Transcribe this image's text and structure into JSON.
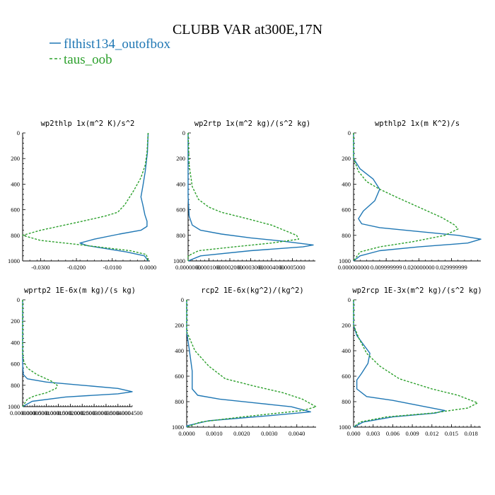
{
  "title": "CLUBB VAR at300E,17N",
  "legend": [
    {
      "label": "flthist134_outofbox",
      "color": "#1f77b4",
      "dash": false
    },
    {
      "label": "taus_oob",
      "color": "#2ca02c",
      "dash": true
    }
  ],
  "chart_data": [
    {
      "type": "line",
      "title": "wp2thlp   1x(m^2 K)/s^2",
      "xlim": [
        -0.035,
        0.0005
      ],
      "ylim": [
        1000,
        0
      ],
      "xticks": [
        -0.03,
        -0.02,
        -0.01,
        0.0
      ],
      "xtick_labels": [
        "-0.0300",
        "-0.0200",
        "-0.0100",
        "0.0000"
      ],
      "yticks": [
        0,
        200,
        400,
        600,
        800,
        1000
      ],
      "series": [
        {
          "name": "flthist134_outofbox",
          "points": [
            [
              0,
              0
            ],
            [
              -0.0002,
              150
            ],
            [
              -0.0008,
              300
            ],
            [
              -0.0015,
              420
            ],
            [
              -0.002,
              500
            ],
            [
              -0.0015,
              560
            ],
            [
              -0.0009,
              640
            ],
            [
              -0.0003,
              690
            ],
            [
              -0.0003,
              730
            ],
            [
              -0.002,
              760
            ],
            [
              -0.008,
              790
            ],
            [
              -0.015,
              830
            ],
            [
              -0.019,
              860
            ],
            [
              -0.017,
              880
            ],
            [
              -0.006,
              930
            ],
            [
              -0.001,
              960
            ],
            [
              0,
              1000
            ]
          ]
        },
        {
          "name": "taus_oob",
          "points": [
            [
              0,
              0
            ],
            [
              -0.0003,
              150
            ],
            [
              -0.0008,
              250
            ],
            [
              -0.002,
              350
            ],
            [
              -0.004,
              450
            ],
            [
              -0.0065,
              560
            ],
            [
              -0.0085,
              620
            ],
            [
              -0.012,
              650
            ],
            [
              -0.02,
              700
            ],
            [
              -0.03,
              760
            ],
            [
              -0.035,
              800
            ],
            [
              -0.03,
              840
            ],
            [
              -0.02,
              870
            ],
            [
              -0.014,
              890
            ],
            [
              -0.005,
              920
            ],
            [
              -0.0005,
              950
            ],
            [
              0,
              1000
            ]
          ]
        }
      ]
    },
    {
      "type": "line",
      "title": "wp2rtp   1x(m^2 kg)/(s^2 kg)",
      "xlim": [
        0,
        0.00061
      ],
      "ylim": [
        1000,
        0
      ],
      "xticks": [
        0,
        0.0001,
        0.0002,
        0.0003,
        0.0004,
        0.0005
      ],
      "xtick_labels": [
        "0.0000000",
        "0.0001000",
        "0.0002000",
        "0.0003000",
        "0.0004000",
        "0.0005000"
      ],
      "yticks": [
        0,
        200,
        400,
        600,
        800,
        1000
      ],
      "series": [
        {
          "name": "flthist134_outofbox",
          "points": [
            [
              0,
              0
            ],
            [
              0,
              500
            ],
            [
              5e-06,
              650
            ],
            [
              2e-05,
              720
            ],
            [
              6e-05,
              760
            ],
            [
              0.00016,
              790
            ],
            [
              0.0003,
              820
            ],
            [
              0.00045,
              845
            ],
            [
              0.0006,
              875
            ],
            [
              0.00055,
              890
            ],
            [
              0.0003,
              920
            ],
            [
              6e-05,
              960
            ],
            [
              0,
              1000
            ]
          ]
        },
        {
          "name": "taus_oob",
          "points": [
            [
              0,
              0
            ],
            [
              5e-06,
              250
            ],
            [
              2e-05,
              420
            ],
            [
              5e-05,
              520
            ],
            [
              0.0001,
              580
            ],
            [
              0.00016,
              620
            ],
            [
              0.00026,
              660
            ],
            [
              0.0004,
              720
            ],
            [
              0.00052,
              800
            ],
            [
              0.00053,
              830
            ],
            [
              0.0004,
              860
            ],
            [
              0.00022,
              890
            ],
            [
              5e-05,
              920
            ],
            [
              0,
              960
            ],
            [
              0,
              1000
            ]
          ]
        }
      ]
    },
    {
      "type": "line",
      "title": "wpthlp2   1x(m K^2)/s",
      "xlim": [
        0,
        0.039
      ],
      "ylim": [
        1000,
        0
      ],
      "xticks": [
        0,
        0.01,
        0.02,
        0.03
      ],
      "xtick_labels": [
        "0.000000000",
        "0.009999999",
        "0.020000000",
        "0.029999999"
      ],
      "yticks": [
        0,
        200,
        400,
        600,
        800,
        1000
      ],
      "series": [
        {
          "name": "flthist134_outofbox",
          "points": [
            [
              0,
              0
            ],
            [
              0,
              200
            ],
            [
              0.002,
              280
            ],
            [
              0.006,
              360
            ],
            [
              0.008,
              440
            ],
            [
              0.0065,
              530
            ],
            [
              0.003,
              610
            ],
            [
              0.0015,
              670
            ],
            [
              0.0025,
              710
            ],
            [
              0.008,
              740
            ],
            [
              0.02,
              770
            ],
            [
              0.032,
              800
            ],
            [
              0.039,
              830
            ],
            [
              0.035,
              860
            ],
            [
              0.02,
              890
            ],
            [
              0.008,
              920
            ],
            [
              0.002,
              960
            ],
            [
              0,
              1000
            ]
          ]
        },
        {
          "name": "taus_oob",
          "points": [
            [
              0,
              0
            ],
            [
              0,
              200
            ],
            [
              0.0015,
              300
            ],
            [
              0.004,
              380
            ],
            [
              0.008,
              440
            ],
            [
              0.013,
              500
            ],
            [
              0.02,
              580
            ],
            [
              0.027,
              660
            ],
            [
              0.031,
              720
            ],
            [
              0.032,
              750
            ],
            [
              0.028,
              800
            ],
            [
              0.018,
              850
            ],
            [
              0.008,
              890
            ],
            [
              0.002,
              930
            ],
            [
              0,
              1000
            ]
          ]
        }
      ]
    },
    {
      "type": "line",
      "title": "wprtp2   1E-6x(m kg)/(s kg)",
      "xlim": [
        0,
        0.00046
      ],
      "ylim": [
        1000,
        0
      ],
      "xticks": [
        0,
        5e-05,
        0.0001,
        0.00015,
        0.0002,
        0.00025,
        0.0003,
        0.00035,
        0.0004,
        0.00045
      ],
      "xtick_labels": [
        "0.0000000",
        "0.0000500",
        "0.0001000",
        "0.0001500",
        "0.0002000",
        "0.0002500",
        "0.0003000",
        "0.0003500",
        "0.0004000",
        "0.0004500"
      ],
      "yticks": [
        0,
        200,
        400,
        600,
        800,
        1000
      ],
      "series": [
        {
          "name": "flthist134_outofbox",
          "points": [
            [
              0,
              0
            ],
            [
              0,
              600
            ],
            [
              3e-06,
              700
            ],
            [
              2e-05,
              740
            ],
            [
              0.0001,
              770
            ],
            [
              0.00025,
              800
            ],
            [
              0.0004,
              830
            ],
            [
              0.00046,
              860
            ],
            [
              0.0004,
              880
            ],
            [
              0.00018,
              910
            ],
            [
              4e-05,
              950
            ],
            [
              0,
              1000
            ]
          ]
        },
        {
          "name": "taus_oob",
          "points": [
            [
              0,
              0
            ],
            [
              0,
              500
            ],
            [
              5e-06,
              580
            ],
            [
              2e-05,
              640
            ],
            [
              6e-05,
              700
            ],
            [
              0.00012,
              760
            ],
            [
              0.000145,
              800
            ],
            [
              0.00014,
              830
            ],
            [
              0.0001,
              870
            ],
            [
              5e-05,
              900
            ],
            [
              2e-05,
              930
            ],
            [
              0,
              1000
            ]
          ]
        }
      ]
    },
    {
      "type": "line",
      "title": "rcp2   1E-6x(kg^2)/(kg^2)",
      "xlim": [
        0,
        0.0047
      ],
      "ylim": [
        1000,
        0
      ],
      "xticks": [
        0,
        0.001,
        0.002,
        0.003,
        0.004
      ],
      "xtick_labels": [
        "0.0000",
        "0.0010",
        "0.0020",
        "0.0030",
        "0.0040"
      ],
      "yticks": [
        0,
        200,
        400,
        600,
        800,
        1000
      ],
      "series": [
        {
          "name": "flthist134_outofbox",
          "points": [
            [
              0,
              0
            ],
            [
              0,
              250
            ],
            [
              0.0001,
              400
            ],
            [
              0.0002,
              560
            ],
            [
              0.0002,
              700
            ],
            [
              0.0004,
              750
            ],
            [
              0.0012,
              780
            ],
            [
              0.0025,
              810
            ],
            [
              0.0038,
              840
            ],
            [
              0.0045,
              880
            ],
            [
              0.003,
              910
            ],
            [
              0.0008,
              950
            ],
            [
              0,
              990
            ],
            [
              0,
              1000
            ]
          ]
        },
        {
          "name": "taus_oob",
          "points": [
            [
              0,
              0
            ],
            [
              0,
              250
            ],
            [
              0.0003,
              400
            ],
            [
              0.0008,
              520
            ],
            [
              0.0014,
              620
            ],
            [
              0.0025,
              680
            ],
            [
              0.0035,
              730
            ],
            [
              0.0042,
              780
            ],
            [
              0.0047,
              840
            ],
            [
              0.0042,
              870
            ],
            [
              0.002,
              920
            ],
            [
              0.0005,
              960
            ],
            [
              0,
              1000
            ]
          ]
        }
      ]
    },
    {
      "type": "line",
      "title": "wp2rcp   1E-3x(m^2 kg)/(s^2 kg)",
      "xlim": [
        0,
        0.0195
      ],
      "ylim": [
        1000,
        0
      ],
      "xticks": [
        0,
        0.003,
        0.006,
        0.009,
        0.012,
        0.015,
        0.018
      ],
      "xtick_labels": [
        "0.000",
        "0.003",
        "0.006",
        "0.009",
        "0.012",
        "0.015",
        "0.018"
      ],
      "yticks": [
        0,
        200,
        400,
        600,
        800,
        1000
      ],
      "series": [
        {
          "name": "flthist134_outofbox",
          "points": [
            [
              0,
              0
            ],
            [
              0,
              200
            ],
            [
              0.0005,
              280
            ],
            [
              0.0015,
              350
            ],
            [
              0.0025,
              420
            ],
            [
              0.0022,
              500
            ],
            [
              0.0012,
              580
            ],
            [
              0.0005,
              630
            ],
            [
              0.0005,
              700
            ],
            [
              0.002,
              760
            ],
            [
              0.006,
              790
            ],
            [
              0.011,
              840
            ],
            [
              0.014,
              870
            ],
            [
              0.0125,
              890
            ],
            [
              0.006,
              920
            ],
            [
              0.0015,
              960
            ],
            [
              0,
              1000
            ]
          ]
        },
        {
          "name": "taus_oob",
          "points": [
            [
              0,
              0
            ],
            [
              0,
              200
            ],
            [
              0.0008,
              300
            ],
            [
              0.002,
              420
            ],
            [
              0.004,
              520
            ],
            [
              0.007,
              620
            ],
            [
              0.012,
              700
            ],
            [
              0.016,
              750
            ],
            [
              0.019,
              810
            ],
            [
              0.0175,
              850
            ],
            [
              0.012,
              890
            ],
            [
              0.005,
              920
            ],
            [
              0.001,
              960
            ],
            [
              0,
              1000
            ]
          ]
        }
      ]
    }
  ]
}
